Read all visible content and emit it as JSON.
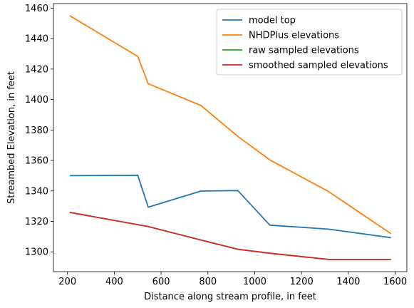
{
  "chart_data": {
    "type": "line",
    "title": "",
    "xlabel": "Distance along stream profile, in feet",
    "ylabel": "Streambed Elevation, in feet",
    "xlim": [
      140,
      1650
    ],
    "ylim": [
      1287,
      1463
    ],
    "xticks": [
      200,
      400,
      600,
      800,
      1000,
      1200,
      1400,
      1600
    ],
    "yticks": [
      1300,
      1320,
      1340,
      1360,
      1380,
      1400,
      1420,
      1440,
      1460
    ],
    "grid": false,
    "legend_position": "top-right",
    "series": [
      {
        "name": "model top",
        "color": "#1f77b4",
        "x": [
          210,
          500,
          545,
          770,
          928,
          1065,
          1315,
          1582
        ],
        "y": [
          1350.0,
          1350.3,
          1329.3,
          1339.9,
          1340.2,
          1317.5,
          1314.9,
          1309.3
        ]
      },
      {
        "name": "NHDPlus elevations",
        "color": "#ff7f0e",
        "x": [
          210,
          500,
          545,
          770,
          928,
          1065,
          1315,
          1582
        ],
        "y": [
          1455.0,
          1428.3,
          1410.4,
          1396.1,
          1375.8,
          1360.3,
          1339.6,
          1311.9
        ]
      },
      {
        "name": "raw sampled elevations",
        "color": "#2ca02c",
        "x": [
          210,
          545,
          770,
          928,
          1065,
          1315,
          1582
        ],
        "y": [
          1325.9,
          1316.6,
          1307.8,
          1301.7,
          1299.1,
          1295.0,
          1295.0
        ]
      },
      {
        "name": "smoothed sampled elevations",
        "color": "#d62728",
        "x": [
          210,
          545,
          770,
          928,
          1065,
          1315,
          1582
        ],
        "y": [
          1325.9,
          1316.6,
          1307.8,
          1301.7,
          1299.1,
          1295.0,
          1295.0
        ]
      }
    ]
  }
}
